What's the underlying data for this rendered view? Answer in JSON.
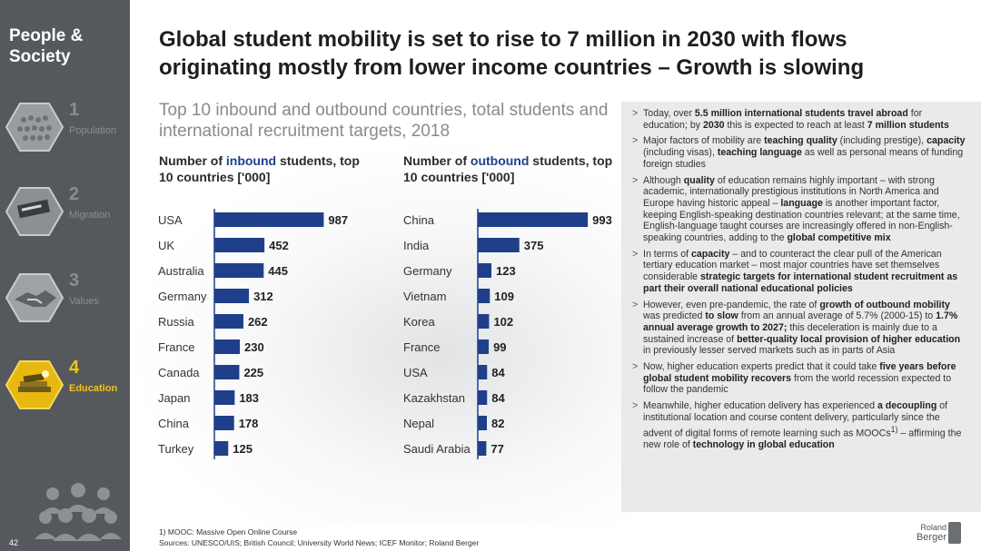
{
  "sidebar": {
    "section_title": "People & Society",
    "items": [
      {
        "num": "1",
        "label": "Population",
        "icon": "crowd-photo-icon",
        "active": false
      },
      {
        "num": "2",
        "label": "Migration",
        "icon": "immigration-sign-icon",
        "active": false
      },
      {
        "num": "3",
        "label": "Values",
        "icon": "handshake-icon",
        "active": false
      },
      {
        "num": "4",
        "label": "Education",
        "icon": "books-icon",
        "active": true
      }
    ],
    "page_number": "42",
    "bottom_icon": "people-group-icon"
  },
  "title": "Global student mobility is set to rise to 7 million in 2030 with flows originating mostly from lower income countries – Growth is slowing",
  "subtitle": "Top 10 inbound and outbound countries, total students and international recruitment targets, 2018",
  "colors": {
    "bar": "#1f3f8a",
    "sidebar": "#55595d",
    "accent": "#f0c419",
    "panel": "#e9eaeb"
  },
  "chart_data": [
    {
      "type": "bar",
      "orientation": "horizontal",
      "title_pre": "Number of ",
      "title_hl": "inbound",
      "title_post": " students, top 10 countries ['000]",
      "categories": [
        "USA",
        "UK",
        "Australia",
        "Germany",
        "Russia",
        "France",
        "Canada",
        "Japan",
        "China",
        "Turkey"
      ],
      "values": [
        987,
        452,
        445,
        312,
        262,
        230,
        225,
        183,
        178,
        125
      ],
      "grid": false
    },
    {
      "type": "bar",
      "orientation": "horizontal",
      "title_pre": "Number of ",
      "title_hl": "outbound",
      "title_post": " students, top 10 countries ['000]",
      "categories": [
        "China",
        "India",
        "Germany",
        "Vietnam",
        "Korea",
        "France",
        "USA",
        "Kazakhstan",
        "Nepal",
        "Saudi Arabia"
      ],
      "values": [
        993,
        375,
        123,
        109,
        102,
        99,
        84,
        84,
        82,
        77
      ],
      "grid": false
    }
  ],
  "bullets": [
    "Today, over <b>5.5 million international students travel abroad</b> for education; by <b>2030</b> this is expected to reach at least <b>7 million students</b>",
    "Major factors of mobility are <b>teaching quality</b> (including prestige), <b>capacity</b> (including visas), <b>teaching language</b> as well as personal means of funding foreign studies",
    "Although <b>quality</b> of education remains highly important – with strong academic, internationally prestigious institutions in North America and Europe having historic appeal – <b>language</b> is another important factor, keeping English-speaking destination countries relevant; at the same time, English-language taught courses are increasingly offered in non-English-speaking countries, adding to the <b>global competitive mix</b>",
    "In terms of <b>capacity</b> – and to counteract the clear pull of the American tertiary education market – most major countries have set themselves considerable <b>strategic targets for international student recruitment as part their overall national educational policies</b>",
    "However, even pre-pandemic, the rate of <b>growth of outbound mobility</b> was predicted <b>to slow</b> from an annual average of 5.7% (2000-15) to <b>1.7% annual average growth to 2027;</b> this deceleration is mainly due to a sustained increase of <b>better-quality local provision of higher education</b> in previously lesser served markets such as in parts of Asia",
    "Now, higher education experts predict that it could take <b>five years before global student mobility recovers</b> from the world recession expected to follow the pandemic",
    "Meanwhile, higher education delivery has experienced <b>a decoupling</b> of institutional location and course content delivery, particularly since the advent of digital forms of remote learning such as MOOCs<sup>1)</sup> – affirming the new role of <b>technology in global education</b>"
  ],
  "footnote": {
    "note": "1) MOOC: Massive Open Online Course",
    "sources": "Sources: UNESCO/UIS; British Council; University World News; ICEF Monitor; Roland Berger"
  },
  "logo": {
    "line1": "Roland",
    "line2": "Berger"
  }
}
